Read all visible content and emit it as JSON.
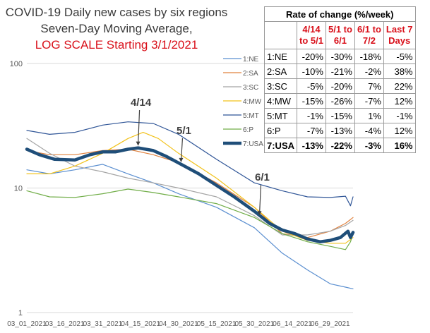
{
  "title": {
    "line1": "COVID-19 Daily new cases by six regions",
    "line2": "Seven-Day Moving Average,",
    "line3": "LOG SCALE Starting 3/1/2021"
  },
  "colors": {
    "title_red": "#d9101a",
    "grid": "#d9d9d9",
    "annotation": "#404040"
  },
  "chart_data": {
    "type": "line",
    "yscale": "log",
    "ylim": [
      1,
      100
    ],
    "yticks": [
      "1",
      "10",
      "100"
    ],
    "x_tick_labels": [
      "03_01_2021",
      "03_16_2021",
      "03_31_2021",
      "04_15_2021",
      "04_30_2021",
      "05_15_2021",
      "05_30_2021",
      "06_14_2021",
      "06_29_2021"
    ],
    "x_tick_dates": [
      "2021-03-01",
      "2021-03-16",
      "2021-03-31",
      "2021-04-15",
      "2021-04-30",
      "2021-05-15",
      "2021-05-30",
      "2021-06-14",
      "2021-06-29"
    ],
    "date_range": [
      "2021-03-01",
      "2021-07-08"
    ],
    "legend_position": "top-center",
    "annotations": [
      {
        "label": "4/14",
        "date": "2021-04-14",
        "value": 21
      },
      {
        "label": "5/1",
        "date": "2021-05-01",
        "value": 15.5
      },
      {
        "label": "6/1",
        "date": "2021-06-01",
        "value": 5.8
      }
    ],
    "series": [
      {
        "name": "1:NE",
        "color": "#5b8fd0",
        "width": 1.2,
        "points": [
          [
            "2021-03-01",
            14
          ],
          [
            "2021-03-10",
            13
          ],
          [
            "2021-03-20",
            14
          ],
          [
            "2021-03-31",
            15.5
          ],
          [
            "2021-04-10",
            13
          ],
          [
            "2021-04-20",
            11
          ],
          [
            "2021-04-30",
            9
          ],
          [
            "2021-05-15",
            7
          ],
          [
            "2021-05-30",
            4.8
          ],
          [
            "2021-06-10",
            3
          ],
          [
            "2021-06-20",
            2.2
          ],
          [
            "2021-06-29",
            1.7
          ],
          [
            "2021-07-05",
            1.6
          ],
          [
            "2021-07-08",
            1.55
          ]
        ]
      },
      {
        "name": "2:SA",
        "color": "#e0823f",
        "width": 1.2,
        "points": [
          [
            "2021-03-01",
            20
          ],
          [
            "2021-03-10",
            18.5
          ],
          [
            "2021-03-20",
            18.5
          ],
          [
            "2021-03-31",
            20
          ],
          [
            "2021-04-10",
            20.5
          ],
          [
            "2021-04-20",
            18.5
          ],
          [
            "2021-04-30",
            16
          ],
          [
            "2021-05-15",
            11
          ],
          [
            "2021-05-30",
            7
          ],
          [
            "2021-06-10",
            4.3
          ],
          [
            "2021-06-20",
            4
          ],
          [
            "2021-06-29",
            4.5
          ],
          [
            "2021-07-05",
            5.2
          ],
          [
            "2021-07-08",
            5.8
          ]
        ]
      },
      {
        "name": "3:SC",
        "color": "#a5a5a5",
        "width": 1.2,
        "points": [
          [
            "2021-03-01",
            25
          ],
          [
            "2021-03-10",
            19
          ],
          [
            "2021-03-20",
            15
          ],
          [
            "2021-03-31",
            13.5
          ],
          [
            "2021-04-10",
            12
          ],
          [
            "2021-04-20",
            11
          ],
          [
            "2021-04-30",
            10
          ],
          [
            "2021-05-15",
            8.5
          ],
          [
            "2021-05-30",
            6
          ],
          [
            "2021-06-10",
            4.2
          ],
          [
            "2021-06-20",
            4.2
          ],
          [
            "2021-06-29",
            4.5
          ],
          [
            "2021-07-05",
            5
          ],
          [
            "2021-07-08",
            5.5
          ]
        ]
      },
      {
        "name": "4:MW",
        "color": "#f2c21a",
        "width": 1.2,
        "points": [
          [
            "2021-03-01",
            13
          ],
          [
            "2021-03-10",
            13
          ],
          [
            "2021-03-20",
            15
          ],
          [
            "2021-03-31",
            19
          ],
          [
            "2021-04-10",
            25
          ],
          [
            "2021-04-16",
            28
          ],
          [
            "2021-04-22",
            25
          ],
          [
            "2021-04-30",
            19
          ],
          [
            "2021-05-15",
            12
          ],
          [
            "2021-05-30",
            7
          ],
          [
            "2021-06-10",
            4.5
          ],
          [
            "2021-06-20",
            3.8
          ],
          [
            "2021-06-29",
            3.6
          ],
          [
            "2021-07-05",
            3.6
          ],
          [
            "2021-07-08",
            4
          ]
        ]
      },
      {
        "name": "5:MT",
        "color": "#2f5597",
        "width": 1.2,
        "points": [
          [
            "2021-03-01",
            29
          ],
          [
            "2021-03-10",
            27
          ],
          [
            "2021-03-20",
            28
          ],
          [
            "2021-03-31",
            32
          ],
          [
            "2021-04-10",
            34
          ],
          [
            "2021-04-20",
            33
          ],
          [
            "2021-04-30",
            27
          ],
          [
            "2021-05-15",
            17
          ],
          [
            "2021-05-30",
            11
          ],
          [
            "2021-06-10",
            9.5
          ],
          [
            "2021-06-20",
            8.5
          ],
          [
            "2021-06-29",
            8.4
          ],
          [
            "2021-07-05",
            8.6
          ],
          [
            "2021-07-07",
            7.2
          ],
          [
            "2021-07-08",
            8.5
          ]
        ]
      },
      {
        "name": "6:P",
        "color": "#70ad47",
        "width": 1.2,
        "points": [
          [
            "2021-03-01",
            9.5
          ],
          [
            "2021-03-10",
            8.5
          ],
          [
            "2021-03-20",
            8.4
          ],
          [
            "2021-03-31",
            9
          ],
          [
            "2021-04-10",
            9.8
          ],
          [
            "2021-04-20",
            9.2
          ],
          [
            "2021-04-30",
            8.5
          ],
          [
            "2021-05-15",
            7.5
          ],
          [
            "2021-05-30",
            5.8
          ],
          [
            "2021-06-10",
            4.3
          ],
          [
            "2021-06-20",
            3.7
          ],
          [
            "2021-06-29",
            3.4
          ],
          [
            "2021-07-05",
            3.2
          ],
          [
            "2021-07-07",
            3.7
          ],
          [
            "2021-07-08",
            4.3
          ]
        ]
      },
      {
        "name": "7:USA",
        "color": "#1f4e79",
        "width": 4.5,
        "points": [
          [
            "2021-03-01",
            20.5
          ],
          [
            "2021-03-06",
            18.5
          ],
          [
            "2021-03-12",
            17
          ],
          [
            "2021-03-20",
            16.8
          ],
          [
            "2021-03-26",
            18.5
          ],
          [
            "2021-03-31",
            19.5
          ],
          [
            "2021-04-05",
            19.5
          ],
          [
            "2021-04-10",
            20.5
          ],
          [
            "2021-04-14",
            21
          ],
          [
            "2021-04-20",
            20
          ],
          [
            "2021-04-25",
            18
          ],
          [
            "2021-05-01",
            15.5
          ],
          [
            "2021-05-08",
            13
          ],
          [
            "2021-05-15",
            10.5
          ],
          [
            "2021-05-22",
            8.5
          ],
          [
            "2021-05-30",
            6.5
          ],
          [
            "2021-06-05",
            5.2
          ],
          [
            "2021-06-10",
            4.6
          ],
          [
            "2021-06-15",
            4.3
          ],
          [
            "2021-06-20",
            3.9
          ],
          [
            "2021-06-25",
            3.7
          ],
          [
            "2021-06-29",
            3.8
          ],
          [
            "2021-07-03",
            4
          ],
          [
            "2021-07-06",
            4.5
          ],
          [
            "2021-07-07",
            4
          ],
          [
            "2021-07-08",
            4.4
          ]
        ]
      }
    ]
  },
  "rate_table": {
    "title": "Rate of change (%/week)",
    "header": {
      "c1_line1": "4/14",
      "c1_line2": "to 5/1",
      "c2_line1": "5/1 to",
      "c2_line2": "6/1",
      "c3_line1": "6/1 to",
      "c3_line2": "7/2",
      "c4_line1": "Last 7",
      "c4_line2": "Days"
    },
    "rows": [
      {
        "region": "1:NE",
        "c1": "-20%",
        "c2": "-30%",
        "c3": "-18%",
        "c4": "-5%"
      },
      {
        "region": "2:SA",
        "c1": "-10%",
        "c2": "-21%",
        "c3": "-2%",
        "c4": "38%"
      },
      {
        "region": "3:SC",
        "c1": "-5%",
        "c2": "-20%",
        "c3": "7%",
        "c4": "22%"
      },
      {
        "region": "4:MW",
        "c1": "-15%",
        "c2": "-26%",
        "c3": "-7%",
        "c4": "12%"
      },
      {
        "region": "5:MT",
        "c1": "-1%",
        "c2": "-15%",
        "c3": "1%",
        "c4": "-1%"
      },
      {
        "region": "6:P",
        "c1": "-7%",
        "c2": "-13%",
        "c3": "-4%",
        "c4": "12%"
      },
      {
        "region": "7:USA",
        "c1": "-13%",
        "c2": "-22%",
        "c3": "-3%",
        "c4": "16%"
      }
    ]
  }
}
